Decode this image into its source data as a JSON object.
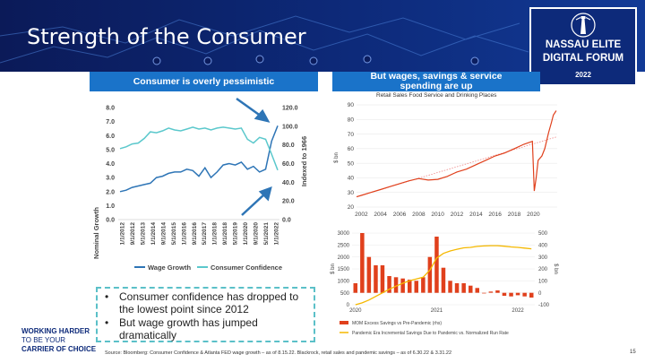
{
  "slide": {
    "title": "Strength of the Consumer",
    "logo": {
      "line1": "NASSAU ELITE",
      "line2": "DIGITAL FORUM",
      "year": "2022"
    },
    "left_header": "Consumer is overly pessimistic",
    "right_header_line1": "But wages, savings & service",
    "right_header_line2": "spending are up",
    "bullets": [
      "Consumer confidence has dropped to the lowest point since 2012",
      "But wage growth has jumped dramatically"
    ],
    "tagline": {
      "line1": "WORKING HARDER",
      "line2": "TO BE YOUR",
      "line3": "CARRIER OF CHOICE"
    },
    "source": "Source: Bloomberg: Consumer Confidence & Atlanta FED wage growth – as of 8.15.22. Blackrock, retail sales and pandemic savings – as of 6.30.22 & 3.31.22",
    "page_number": "15",
    "colors": {
      "navy": "#0d2a7a",
      "blue": "#1a73c9",
      "teal": "#5bc0c8",
      "orange_red": "#e0401c",
      "gold": "#f5b800"
    }
  },
  "chart_data": [
    {
      "type": "line",
      "ylabel": "Nominal Growth",
      "y2label": "Indexed to 1966",
      "ylim": [
        0,
        8
      ],
      "y2lim": [
        0,
        120
      ],
      "yticks": [
        "0.0",
        "1.0",
        "2.0",
        "3.0",
        "4.0",
        "5.0",
        "6.0",
        "7.0",
        "8.0"
      ],
      "y2ticks": [
        "0.0",
        "20.0",
        "40.0",
        "60.0",
        "80.0",
        "100.0",
        "120.0"
      ],
      "x_ticks": [
        "1/1/2012",
        "9/1/2012",
        "5/1/2013",
        "1/1/2014",
        "9/1/2014",
        "5/1/2015",
        "1/1/2016",
        "9/1/2016",
        "5/1/2017",
        "1/1/2018",
        "9/1/2018",
        "5/1/2019",
        "1/1/2020",
        "9/1/2020",
        "5/1/2021",
        "1/1/2022"
      ],
      "legend_position": "bottom",
      "series": [
        {
          "name": "Wage Growth",
          "axis": "left",
          "color": "#2e75b6",
          "values": [
            2.0,
            2.1,
            2.3,
            2.4,
            2.5,
            2.6,
            3.0,
            3.1,
            3.3,
            3.4,
            3.4,
            3.6,
            3.5,
            3.1,
            3.7,
            3.0,
            3.4,
            3.9,
            4.0,
            3.9,
            4.1,
            3.6,
            3.8,
            3.4,
            3.6,
            5.6,
            6.7
          ]
        },
        {
          "name": "Consumer Confidence",
          "axis": "right",
          "color": "#5bc8cc",
          "values": [
            76,
            78,
            81,
            82,
            87,
            94,
            93,
            95,
            98,
            96,
            95,
            97,
            99,
            97,
            98,
            96,
            98,
            99,
            98,
            97,
            98,
            86,
            82,
            88,
            86,
            70,
            53
          ]
        }
      ]
    },
    {
      "type": "line",
      "title": "Retail Sales Food Service and Drinking Places",
      "ylabel": "$ bn",
      "ylim": [
        20,
        90
      ],
      "yticks": [
        "20",
        "30",
        "40",
        "50",
        "60",
        "70",
        "80",
        "90"
      ],
      "x_ticks": [
        "2002",
        "2004",
        "2006",
        "2008",
        "2010",
        "2012",
        "2014",
        "2016",
        "2018",
        "2020"
      ],
      "x": [
        2001.5,
        2002,
        2003,
        2004,
        2005,
        2006,
        2007,
        2008,
        2009,
        2010,
        2011,
        2012,
        2013,
        2014,
        2015,
        2016,
        2017,
        2018,
        2019,
        2019.9,
        2020.1,
        2020.3,
        2020.5,
        2020.9,
        2021.2,
        2021.6,
        2021.9,
        2022.1,
        2022.4
      ],
      "y": [
        27,
        28,
        30,
        32,
        34,
        36,
        38,
        39.5,
        38.5,
        39,
        41,
        44,
        46,
        49,
        52,
        55,
        57,
        60,
        63,
        65,
        31,
        40,
        52,
        55,
        60,
        71,
        78,
        83,
        86
      ],
      "trend": [
        [
          2001.5,
          27
        ],
        [
          2022.4,
          68
        ]
      ]
    },
    {
      "type": "bar",
      "ylabel": "$ bn",
      "y2label": "$ bn",
      "ylim": [
        0,
        3000
      ],
      "y2lim": [
        -100,
        500
      ],
      "yticks": [
        "0",
        "500",
        "1000",
        "1500",
        "2000",
        "2500",
        "3000"
      ],
      "y2ticks": [
        "-100",
        "0",
        "100",
        "200",
        "300",
        "400",
        "500"
      ],
      "x_ticks": [
        "2020",
        "2021",
        "2022"
      ],
      "legend_position": "bottom",
      "series": [
        {
          "name": "MOM Excess Savings vs Pre-Pandemic (rhs)",
          "color": "#e0401c",
          "values": [
            80,
            500,
            300,
            230,
            230,
            140,
            130,
            120,
            110,
            100,
            130,
            300,
            470,
            210,
            100,
            80,
            80,
            60,
            40,
            -5,
            10,
            20,
            -25,
            -30,
            -20,
            -30,
            -40
          ]
        },
        {
          "name": "Pandemic Era Incremental Savings Due to Pandemic vs. Normalized Run Rate",
          "color": "#f5b800",
          "values": [
            0,
            80,
            200,
            350,
            500,
            650,
            780,
            900,
            1000,
            1080,
            1150,
            1450,
            1950,
            2150,
            2250,
            2320,
            2380,
            2400,
            2440,
            2460,
            2470,
            2470,
            2450,
            2420,
            2400,
            2370,
            2340
          ]
        }
      ]
    }
  ]
}
